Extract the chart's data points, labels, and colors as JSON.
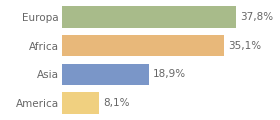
{
  "categories": [
    "Europa",
    "Africa",
    "Asia",
    "America"
  ],
  "values": [
    37.8,
    35.1,
    18.9,
    8.1
  ],
  "labels": [
    "37,8%",
    "35,1%",
    "18,9%",
    "8,1%"
  ],
  "bar_colors": [
    "#a8bb8a",
    "#e8b87a",
    "#7a96c8",
    "#f0d080"
  ],
  "background_color": "#ffffff",
  "xlim": [
    0,
    46
  ],
  "bar_height": 0.75,
  "label_fontsize": 7.5,
  "category_fontsize": 7.5,
  "text_color": "#666666"
}
